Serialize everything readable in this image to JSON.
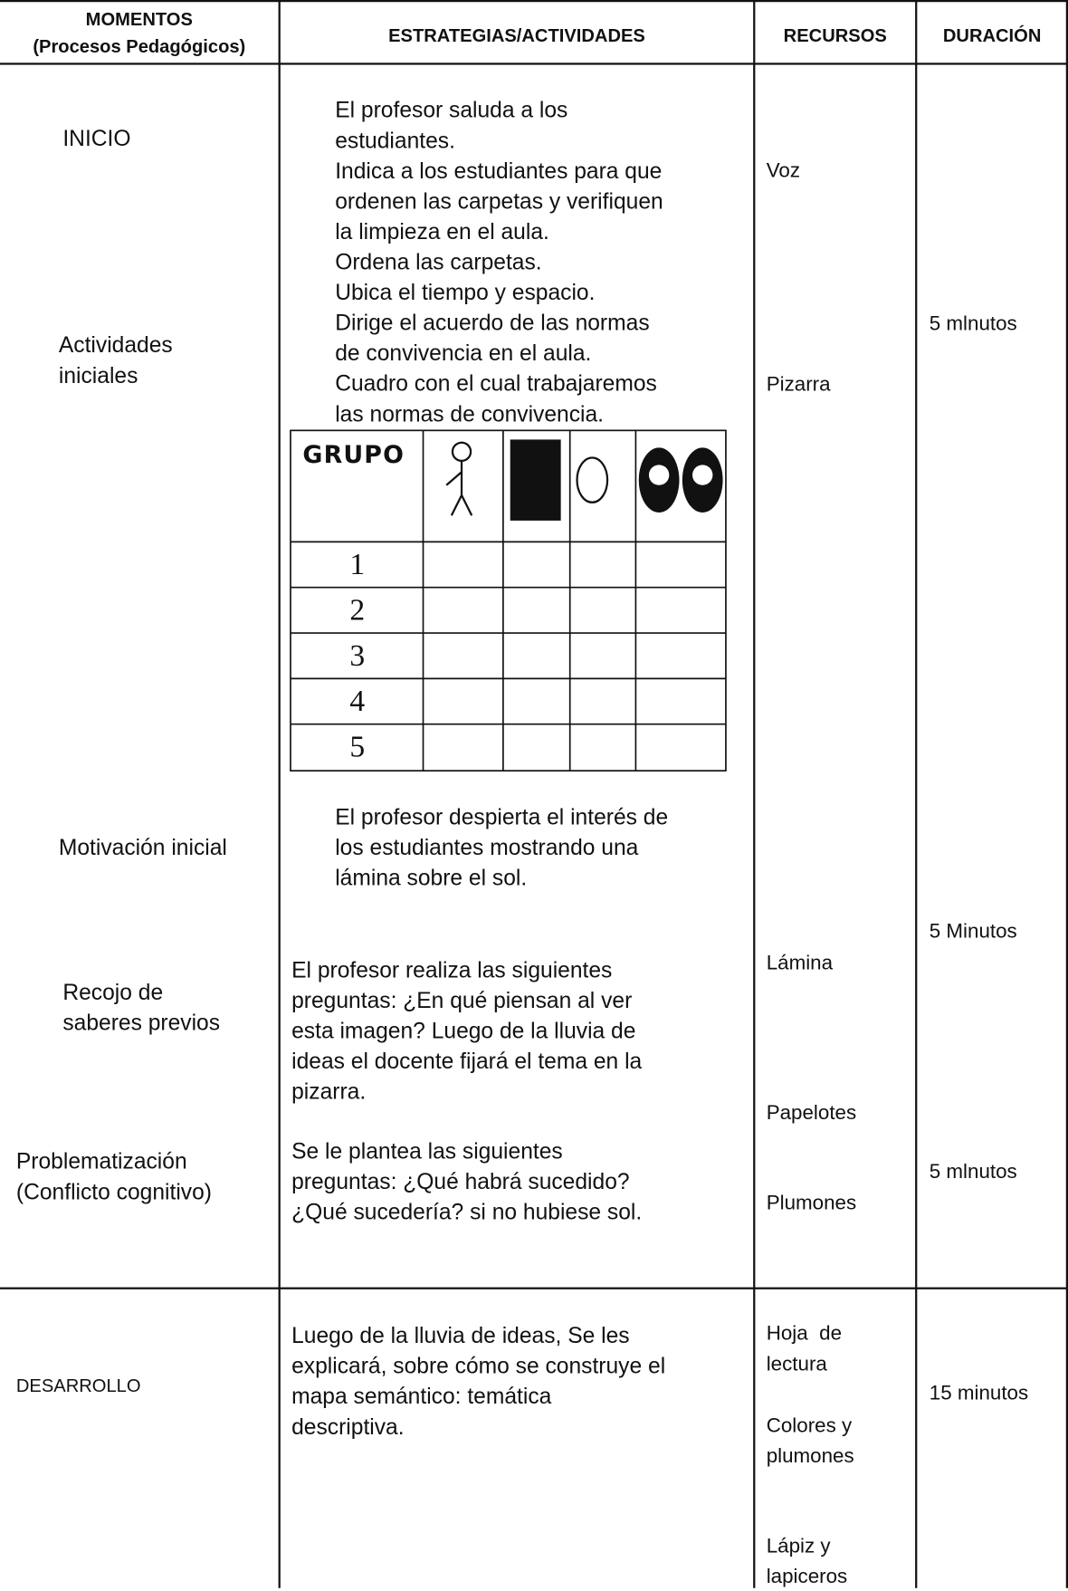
{
  "header": {
    "momentos": [
      "MOMENTOS",
      "(Procesos Pedagógicos)"
    ],
    "estrategias": "ESTRATEGIAS/ACTIVIDADES",
    "recursos": "RECURSOS",
    "duracion": "DURACIÓN"
  },
  "momentos": [
    [
      "INICIO"
    ],
    [
      "Actividades",
      "iniciales"
    ],
    [
      "Motivación inicial"
    ],
    [
      "Recojo de",
      "saberes previos"
    ],
    [
      "Problematización",
      "(Conflicto cognitivo)"
    ],
    [
      "DESARROLLO"
    ]
  ],
  "estrategias": [
    [
      "El profesor saluda a los",
      "estudiantes.",
      "Indica a los estudiantes para que",
      "ordenen las carpetas y verifiquen",
      "la limpieza en el aula.",
      "Ordena las carpetas.",
      "Ubica el tiempo y espacio.",
      "Dirige el acuerdo de las normas",
      "de convivencia en el aula.",
      "Cuadro con el cual trabajaremos",
      "las normas de convivencia."
    ],
    [
      "El profesor despierta el interés de",
      "los estudiantes mostrando una",
      "lámina sobre el sol."
    ],
    [
      "El profesor realiza las siguientes",
      "preguntas: ¿En qué piensan al ver",
      "esta imagen? Luego de la lluvia de",
      "ideas el docente fijará el tema en la",
      "pizarra."
    ],
    [
      "Se le plantea las siguientes",
      "preguntas: ¿Qué habrá sucedido?",
      "¿Qué sucedería? si no hubiese sol."
    ],
    [
      "Luego de la lluvia de ideas, Se les",
      "explicará, sobre cómo se construye el",
      "mapa semántico: temática",
      "descriptiva."
    ]
  ],
  "grupos_table": {
    "header": "GRUPO",
    "rows": [
      "1",
      "2",
      "3",
      "4",
      "5"
    ]
  },
  "recursos": [
    [
      "Voz"
    ],
    [
      "Pizarra"
    ],
    [
      "Lámina"
    ],
    [
      "Papelotes"
    ],
    [
      "Plumones"
    ],
    [
      "Hoja  de",
      "lectura"
    ],
    [
      "Colores y",
      "plumones"
    ],
    [
      "Lápiz y",
      "lapiceros"
    ]
  ],
  "duracion": [
    "5 mlnutos",
    "5 Minutos",
    "5 mlnutos",
    "15 minutos"
  ]
}
